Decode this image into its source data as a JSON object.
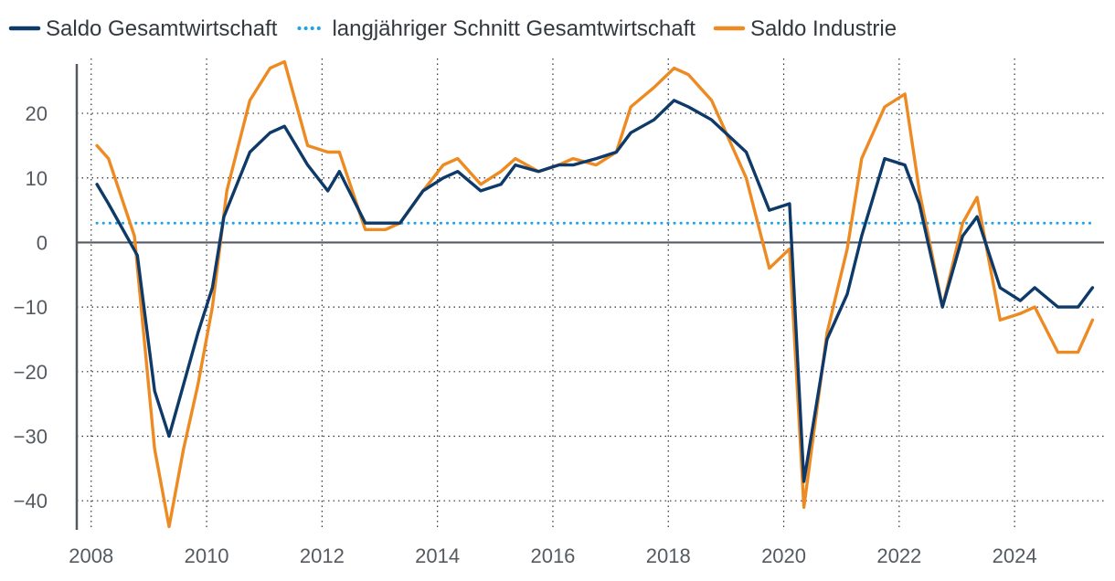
{
  "chart_data": {
    "type": "line",
    "title": "",
    "xlabel": "",
    "ylabel": "",
    "xlim": [
      2007.75,
      2025.55
    ],
    "ylim": [
      -44.5,
      28.5
    ],
    "grid": true,
    "legend_position": "top",
    "x_ticks": [
      {
        "value": 2008,
        "label": "2008"
      },
      {
        "value": 2010,
        "label": "2010"
      },
      {
        "value": 2012,
        "label": "2012"
      },
      {
        "value": 2014,
        "label": "2014"
      },
      {
        "value": 2016,
        "label": "2016"
      },
      {
        "value": 2018,
        "label": "2018"
      },
      {
        "value": 2020,
        "label": "2020"
      },
      {
        "value": 2022,
        "label": "2022"
      },
      {
        "value": 2024,
        "label": "2024"
      }
    ],
    "y_ticks": [
      {
        "value": 20,
        "label": "20"
      },
      {
        "value": 10,
        "label": "10"
      },
      {
        "value": 0,
        "label": "0"
      },
      {
        "value": -10,
        "label": "−10"
      },
      {
        "value": -20,
        "label": "−20"
      },
      {
        "value": -30,
        "label": "−30"
      },
      {
        "value": -40,
        "label": "−40"
      }
    ],
    "series": [
      {
        "name": "Saldo Gesamtwirtschaft",
        "color": "#0d3a68",
        "style": "solid",
        "points": [
          [
            2008.1,
            9
          ],
          [
            2008.3,
            6
          ],
          [
            2008.8,
            -2
          ],
          [
            2009.1,
            -23
          ],
          [
            2009.35,
            -30
          ],
          [
            2009.6,
            -22
          ],
          [
            2009.85,
            -14
          ],
          [
            2010.1,
            -7
          ],
          [
            2010.3,
            4
          ],
          [
            2010.75,
            14
          ],
          [
            2011.1,
            17
          ],
          [
            2011.35,
            18
          ],
          [
            2011.75,
            12
          ],
          [
            2012.1,
            8
          ],
          [
            2012.3,
            11
          ],
          [
            2012.75,
            3
          ],
          [
            2013.35,
            3
          ],
          [
            2013.75,
            8
          ],
          [
            2014.1,
            10
          ],
          [
            2014.35,
            11
          ],
          [
            2014.75,
            8
          ],
          [
            2015.1,
            9
          ],
          [
            2015.35,
            12
          ],
          [
            2015.75,
            11
          ],
          [
            2016.1,
            12
          ],
          [
            2016.35,
            12
          ],
          [
            2016.75,
            13
          ],
          [
            2017.1,
            14
          ],
          [
            2017.35,
            17
          ],
          [
            2017.75,
            19
          ],
          [
            2018.1,
            22
          ],
          [
            2018.35,
            21
          ],
          [
            2018.75,
            19
          ],
          [
            2019.35,
            14
          ],
          [
            2019.75,
            5
          ],
          [
            2020.1,
            6
          ],
          [
            2020.35,
            -37
          ],
          [
            2020.75,
            -15
          ],
          [
            2021.1,
            -8
          ],
          [
            2021.35,
            1
          ],
          [
            2021.75,
            13
          ],
          [
            2022.1,
            12
          ],
          [
            2022.35,
            6
          ],
          [
            2022.75,
            -10
          ],
          [
            2023.1,
            1
          ],
          [
            2023.35,
            4
          ],
          [
            2023.75,
            -7
          ],
          [
            2024.1,
            -9
          ],
          [
            2024.35,
            -7
          ],
          [
            2024.75,
            -10
          ],
          [
            2025.1,
            -10
          ],
          [
            2025.35,
            -7
          ]
        ]
      },
      {
        "name": "langjähriger Schnitt Gesamtwirtschaft",
        "color": "#1aa3e8",
        "style": "dotted",
        "points": [
          [
            2008.1,
            3
          ],
          [
            2025.35,
            3
          ]
        ]
      },
      {
        "name": "Saldo Industrie",
        "color": "#ee8a22",
        "style": "solid",
        "points": [
          [
            2008.1,
            15
          ],
          [
            2008.3,
            13
          ],
          [
            2008.75,
            1
          ],
          [
            2009.1,
            -32
          ],
          [
            2009.35,
            -44
          ],
          [
            2009.6,
            -32
          ],
          [
            2009.85,
            -22
          ],
          [
            2010.1,
            -10
          ],
          [
            2010.35,
            8
          ],
          [
            2010.75,
            22
          ],
          [
            2011.1,
            27
          ],
          [
            2011.35,
            28
          ],
          [
            2011.75,
            15
          ],
          [
            2012.1,
            14
          ],
          [
            2012.3,
            14
          ],
          [
            2012.75,
            2
          ],
          [
            2013.1,
            2
          ],
          [
            2013.35,
            3
          ],
          [
            2013.75,
            8
          ],
          [
            2014.1,
            12
          ],
          [
            2014.35,
            13
          ],
          [
            2014.75,
            9
          ],
          [
            2015.1,
            11
          ],
          [
            2015.35,
            13
          ],
          [
            2015.75,
            11
          ],
          [
            2016.1,
            12
          ],
          [
            2016.35,
            13
          ],
          [
            2016.75,
            12
          ],
          [
            2017.1,
            14
          ],
          [
            2017.35,
            21
          ],
          [
            2017.75,
            24
          ],
          [
            2018.1,
            27
          ],
          [
            2018.35,
            26
          ],
          [
            2018.75,
            22
          ],
          [
            2019.35,
            10
          ],
          [
            2019.75,
            -4
          ],
          [
            2020.1,
            -1
          ],
          [
            2020.35,
            -41
          ],
          [
            2020.75,
            -14
          ],
          [
            2021.1,
            -1
          ],
          [
            2021.35,
            13
          ],
          [
            2021.75,
            21
          ],
          [
            2022.1,
            23
          ],
          [
            2022.35,
            8
          ],
          [
            2022.75,
            -10
          ],
          [
            2023.1,
            3
          ],
          [
            2023.35,
            7
          ],
          [
            2023.75,
            -12
          ],
          [
            2024.1,
            -11
          ],
          [
            2024.35,
            -10
          ],
          [
            2024.75,
            -17
          ],
          [
            2025.1,
            -17
          ],
          [
            2025.35,
            -12
          ]
        ]
      }
    ]
  }
}
